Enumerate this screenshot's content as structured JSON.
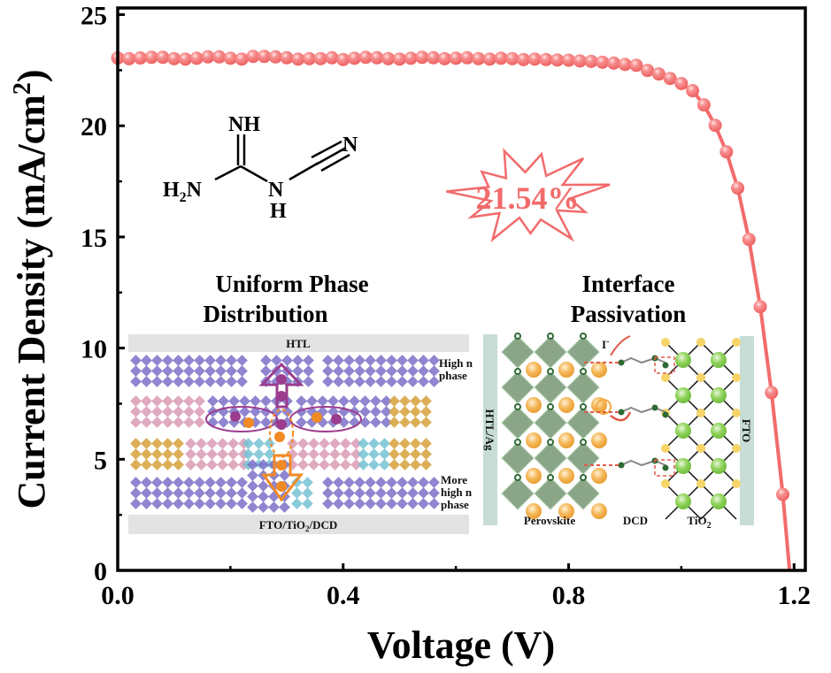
{
  "chart_data": {
    "type": "scatter",
    "xlabel": "Voltage (V)",
    "ylabel_main": "Current Density (mA/cm",
    "ylabel_sup": "2",
    "ylabel_end": ")",
    "xlim": [
      0,
      1.22
    ],
    "ylim": [
      0,
      25.3
    ],
    "xticks": [
      "0.0",
      "0.4",
      "0.8",
      "1.2"
    ],
    "xtick_values": [
      0,
      0.4,
      0.8,
      1.2
    ],
    "yticks": [
      "0",
      "5",
      "10",
      "15",
      "20",
      "25"
    ],
    "ytick_values": [
      0,
      5,
      10,
      15,
      20,
      25
    ],
    "grid": false,
    "series_color": "#f26b6b",
    "x": [
      0.0,
      0.02,
      0.04,
      0.06,
      0.08,
      0.1,
      0.12,
      0.14,
      0.16,
      0.18,
      0.2,
      0.22,
      0.24,
      0.26,
      0.28,
      0.3,
      0.32,
      0.34,
      0.36,
      0.38,
      0.4,
      0.42,
      0.44,
      0.46,
      0.48,
      0.5,
      0.52,
      0.54,
      0.56,
      0.58,
      0.6,
      0.62,
      0.64,
      0.66,
      0.68,
      0.7,
      0.72,
      0.74,
      0.76,
      0.78,
      0.8,
      0.82,
      0.84,
      0.86,
      0.88,
      0.9,
      0.92,
      0.94,
      0.96,
      0.98,
      1.0,
      1.02,
      1.04,
      1.06,
      1.08,
      1.1,
      1.12,
      1.14,
      1.16,
      1.18
    ],
    "y": [
      23.05,
      23.02,
      23.05,
      23.08,
      23.08,
      23.02,
      23.0,
      23.04,
      23.1,
      23.1,
      23.04,
      23.0,
      23.12,
      23.12,
      23.1,
      23.06,
      23.0,
      23.02,
      23.02,
      23.06,
      22.98,
      23.04,
      23.08,
      23.06,
      23.02,
      23.0,
      23.04,
      23.08,
      23.06,
      23.02,
      23.04,
      23.06,
      23.02,
      23.0,
      23.04,
      23.02,
      22.98,
      23.0,
      22.98,
      22.96,
      22.95,
      22.92,
      22.9,
      22.86,
      22.82,
      22.76,
      22.72,
      22.49,
      22.33,
      22.13,
      21.9,
      21.58,
      20.94,
      20.02,
      18.83,
      17.2,
      14.89,
      11.86,
      8.0,
      3.42
    ],
    "voc": 1.192,
    "annotation": "21.54%",
    "annotation_color": "#f26b6b"
  },
  "molecule": {
    "nh": "NH",
    "h2n_h": "H",
    "h2n_sub": "2",
    "h2n_n": "N",
    "n_mid": "N",
    "h_mid": "H",
    "n_end": "N"
  },
  "left_inset": {
    "title_line1": "Uniform Phase",
    "title_line2": "Distribution",
    "top_bar": "HTL",
    "bottom_bar_a": "FTO/TiO",
    "bottom_bar_sub": "2",
    "bottom_bar_b": "/DCD",
    "label_high_1": "High n",
    "label_high_2": "phase",
    "label_more_1": "More",
    "label_more_2": "high n",
    "label_more_3": "phase",
    "colors": {
      "high_n": "#7b70c8",
      "low_n_pink": "#d99bb5",
      "low_n_gold": "#d6a13a",
      "mid_cyan": "#76c2d4",
      "hole": "#9b3c8e",
      "electron": "#f08a24"
    }
  },
  "right_inset": {
    "title_line1": "Interface",
    "title_line2": "Passivation",
    "left_bar": "HTL/Ag",
    "right_bar": "FTO",
    "label_perovskite": "Perovskite",
    "label_dcd": "DCD",
    "label_tio2_a": "TiO",
    "label_tio2_sub": "2",
    "label_iodide": "I",
    "label_iodide_sup": "-",
    "colors": {
      "octahedra": "#6f8f6c",
      "a_site": "#f0a940",
      "ti": "#7cc84a",
      "o": "#f5d56a",
      "bar": "#c7ddd6"
    }
  }
}
